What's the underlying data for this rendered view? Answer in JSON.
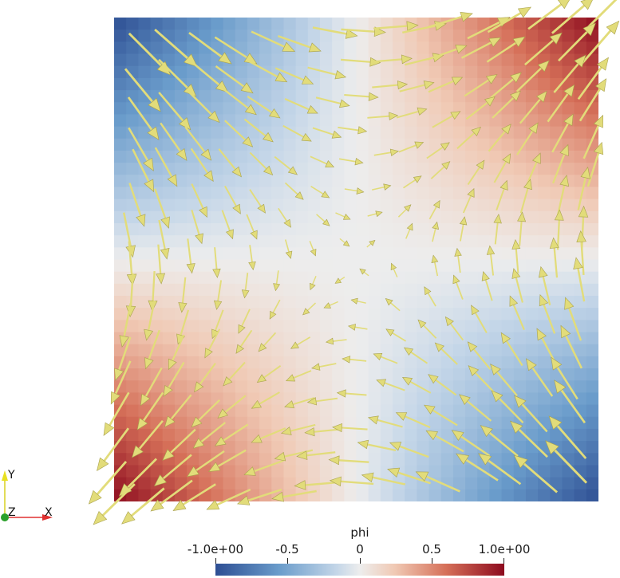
{
  "field": {
    "scalar_name": "phi",
    "colormap": "cool-to-warm",
    "range": [
      -1.0,
      1.0
    ],
    "vector_color": "#e2dc7a",
    "vector_glyph": "arrow"
  },
  "colorbar": {
    "title": "phi",
    "tick_labels": [
      "-1.0e+00",
      "-0.5",
      "0",
      "0.5",
      "1.0e+00"
    ],
    "tick_values": [
      -1.0,
      -0.5,
      0.0,
      0.5,
      1.0
    ],
    "colors": [
      "#2d4e93",
      "#6a9ccb",
      "#c4d6e8",
      "#ededed",
      "#f0c9b4",
      "#d56f58",
      "#8c0a1e"
    ]
  },
  "orientation_axes": {
    "x_label": "X",
    "y_label": "Y",
    "z_label": "Z",
    "x_color": "#e03030",
    "y_color": "#e8e020",
    "z_color": "#2aa02a"
  }
}
